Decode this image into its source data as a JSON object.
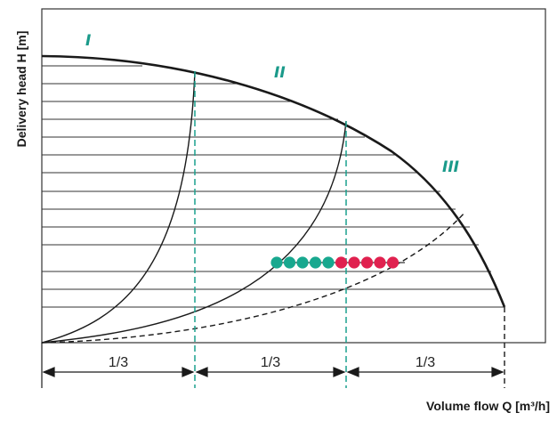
{
  "axes": {
    "y_label": "Delivery head H [m]",
    "x_label": "Volume flow Q  [m³/h]"
  },
  "zones": [
    "I",
    "II",
    "III"
  ],
  "fraction_label": "1/3",
  "colors": {
    "curve": "#1a1a1a",
    "guide": "#1aa08d",
    "zone_label": "#1a9a8a",
    "dot_green": "#18a88f",
    "dot_red": "#e0214f",
    "hatch": "#333333"
  },
  "operating_points": {
    "green_count": 5,
    "red_count": 5
  }
}
